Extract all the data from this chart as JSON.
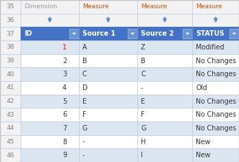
{
  "row_numbers": [
    "35",
    "36",
    "37",
    "38",
    "39",
    "40",
    "41",
    "42",
    "43",
    "44",
    "45",
    "46"
  ],
  "col_labels_row35": [
    "Dimension",
    "Measure",
    "Measure",
    "Measure"
  ],
  "col_labels_row35_colors": [
    "#9b9b9b",
    "#c0530a",
    "#c0530a",
    "#c0530a"
  ],
  "header_row": [
    "ID",
    "Source 1",
    "Source 2",
    "STATUS"
  ],
  "data_rows": [
    [
      "1",
      "A",
      "Z",
      "Modified"
    ],
    [
      "2",
      "B",
      "B",
      "No Changes"
    ],
    [
      "3",
      "C",
      "C",
      "No Changes"
    ],
    [
      "4",
      "D",
      "-",
      "Old"
    ],
    [
      "5",
      "E",
      "E",
      "No Changes"
    ],
    [
      "6",
      "F",
      "F",
      "No Changes"
    ],
    [
      "7",
      "G",
      "G",
      "No Changes"
    ],
    [
      "8",
      "-",
      "H",
      "New"
    ],
    [
      "9",
      "-",
      "I",
      "New"
    ]
  ],
  "header_bg": "#4472c4",
  "header_fg": "#ffffff",
  "row_bg_even": "#dce6f1",
  "row_bg_odd": "#ffffff",
  "rn_bg": "#f2f2f2",
  "rn_fg": "#808080",
  "grid_color": "#b8cce4",
  "outer_border": "#c0c0c0",
  "id_color_special": "#ff0000",
  "arrow_color": "#5b8ed6",
  "fig_bg": "#ffffff"
}
